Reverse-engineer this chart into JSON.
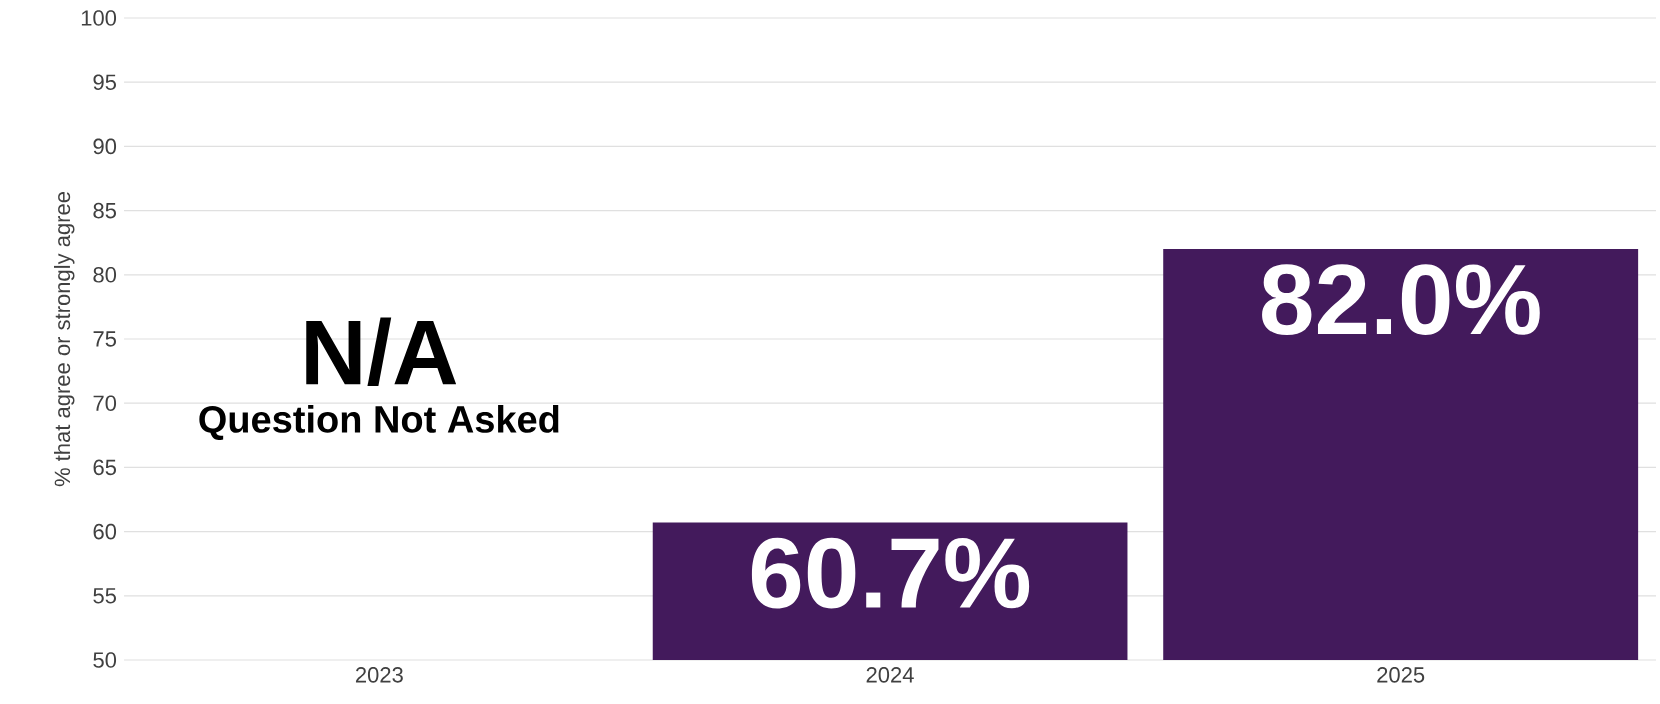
{
  "chart_data": {
    "type": "bar",
    "ylabel": "% that agree or strongly agree",
    "categories": [
      "2023",
      "2024",
      "2025"
    ],
    "values": [
      null,
      60.7,
      82.0
    ],
    "value_labels": [
      null,
      "60.7%",
      "82.0%"
    ],
    "color": "#431a5c",
    "ylim": [
      50,
      100
    ],
    "yticks": [
      50,
      55,
      60,
      65,
      70,
      75,
      80,
      85,
      90,
      95,
      100
    ],
    "grid": "y",
    "annotations": [
      "N/A",
      "Question Not Asked"
    ]
  }
}
